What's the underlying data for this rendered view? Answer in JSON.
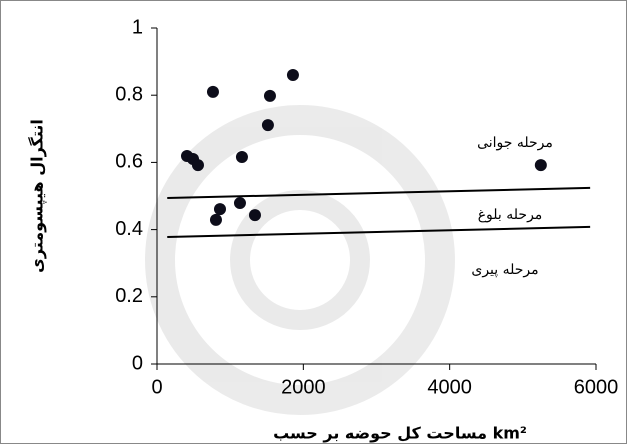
{
  "chart_data": {
    "type": "scatter",
    "x_label": "مساحت کل حوضه بر حسب km²",
    "y_label": "انتگرال هیپسومتری",
    "x": [
      410,
      492,
      560,
      765,
      806,
      861,
      1134,
      1161,
      1339,
      1516,
      1544,
      1858,
      5246
    ],
    "values": [
      0.619,
      0.61,
      0.592,
      0.81,
      0.429,
      0.461,
      0.479,
      0.616,
      0.443,
      0.711,
      0.798,
      0.86,
      0.592
    ],
    "color": "#0d0d1a",
    "lines": [
      {
        "x": [
          140,
          5920
        ],
        "y": [
          0.494,
          0.524
        ]
      },
      {
        "x": [
          140,
          5920
        ],
        "y": [
          0.378,
          0.408
        ]
      }
    ],
    "annotations": [
      "مرحله جوانی",
      "مرحله بلوغ",
      "مرحله پیری"
    ],
    "xlim": [
      0,
      6000
    ],
    "ylim": [
      0,
      1
    ],
    "xticks": [
      0,
      2000,
      4000,
      6000
    ],
    "yticks": [
      0,
      0.2,
      0.4,
      0.6,
      0.8,
      1
    ],
    "grid": false
  }
}
